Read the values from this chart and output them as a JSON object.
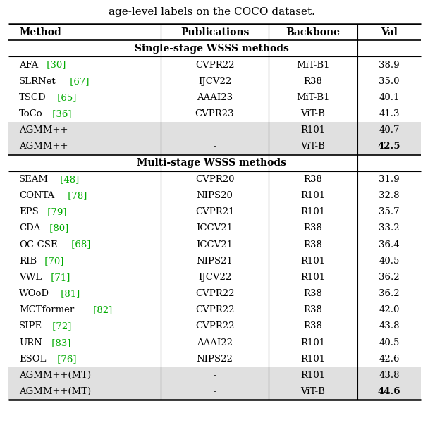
{
  "title_text": "age-level labels on the COCO dataset.",
  "header": [
    "Method",
    "Publications",
    "Backbone",
    "Val"
  ],
  "single_stage_header": "Single-stage WSSS methods",
  "multi_stage_header": "Multi-stage WSSS methods",
  "single_stage_rows": [
    {
      "method": "AFA",
      "ref": " [30]",
      "pub": "CVPR22",
      "backbone": "MiT-B1",
      "val": "38.9",
      "bold_val": false,
      "shaded": false
    },
    {
      "method": "SLRNet",
      "ref": " [67]",
      "pub": "IJCV22",
      "backbone": "R38",
      "val": "35.0",
      "bold_val": false,
      "shaded": false
    },
    {
      "method": "TSCD",
      "ref": " [65]",
      "pub": "AAAI23",
      "backbone": "MiT-B1",
      "val": "40.1",
      "bold_val": false,
      "shaded": false
    },
    {
      "method": "ToCo",
      "ref": " [36]",
      "pub": "CVPR23",
      "backbone": "ViT-B",
      "val": "41.3",
      "bold_val": false,
      "shaded": false
    },
    {
      "method": "AGMM++",
      "ref": "",
      "pub": "-",
      "backbone": "R101",
      "val": "40.7",
      "bold_val": false,
      "shaded": true
    },
    {
      "method": "AGMM++",
      "ref": "",
      "pub": "-",
      "backbone": "ViT-B",
      "val": "42.5",
      "bold_val": true,
      "shaded": true
    }
  ],
  "multi_stage_rows": [
    {
      "method": "SEAM",
      "ref": " [48]",
      "pub": "CVPR20",
      "backbone": "R38",
      "val": "31.9",
      "bold_val": false,
      "shaded": false
    },
    {
      "method": "CONTA",
      "ref": " [78]",
      "pub": "NIPS20",
      "backbone": "R101",
      "val": "32.8",
      "bold_val": false,
      "shaded": false
    },
    {
      "method": "EPS",
      "ref": " [79]",
      "pub": "CVPR21",
      "backbone": "R101",
      "val": "35.7",
      "bold_val": false,
      "shaded": false
    },
    {
      "method": "CDA",
      "ref": " [80]",
      "pub": "ICCV21",
      "backbone": "R38",
      "val": "33.2",
      "bold_val": false,
      "shaded": false
    },
    {
      "method": "OC-CSE",
      "ref": " [68]",
      "pub": "ICCV21",
      "backbone": "R38",
      "val": "36.4",
      "bold_val": false,
      "shaded": false
    },
    {
      "method": "RIB",
      "ref": " [70]",
      "pub": "NIPS21",
      "backbone": "R101",
      "val": "40.5",
      "bold_val": false,
      "shaded": false
    },
    {
      "method": "VWL",
      "ref": " [71]",
      "pub": "IJCV22",
      "backbone": "R101",
      "val": "36.2",
      "bold_val": false,
      "shaded": false
    },
    {
      "method": "WOoD",
      "ref": " [81]",
      "pub": "CVPR22",
      "backbone": "R38",
      "val": "36.2",
      "bold_val": false,
      "shaded": false
    },
    {
      "method": "MCTformer",
      "ref": " [82]",
      "pub": "CVPR22",
      "backbone": "R38",
      "val": "42.0",
      "bold_val": false,
      "shaded": false
    },
    {
      "method": "SIPE",
      "ref": " [72]",
      "pub": "CVPR22",
      "backbone": "R38",
      "val": "43.8",
      "bold_val": false,
      "shaded": false
    },
    {
      "method": "URN",
      "ref": " [83]",
      "pub": "AAAI22",
      "backbone": "R101",
      "val": "40.5",
      "bold_val": false,
      "shaded": false
    },
    {
      "method": "ESOL",
      "ref": " [76]",
      "pub": "NIPS22",
      "backbone": "R101",
      "val": "42.6",
      "bold_val": false,
      "shaded": false
    },
    {
      "method": "AGMM++(MT)",
      "ref": "",
      "pub": "-",
      "backbone": "R101",
      "val": "43.8",
      "bold_val": false,
      "shaded": true
    },
    {
      "method": "AGMM++(MT)",
      "ref": "",
      "pub": "-",
      "backbone": "ViT-B",
      "val": "44.6",
      "bold_val": true,
      "shaded": true
    }
  ],
  "ref_color": "#00aa00",
  "shade_color": "#e0e0e0",
  "bg_color": "#ffffff",
  "font_size": 9.5,
  "header_font_size": 10.0,
  "section_font_size": 10.0,
  "col_bounds": [
    0.02,
    0.38,
    0.635,
    0.845,
    0.995
  ],
  "title_fontsize": 11.0
}
